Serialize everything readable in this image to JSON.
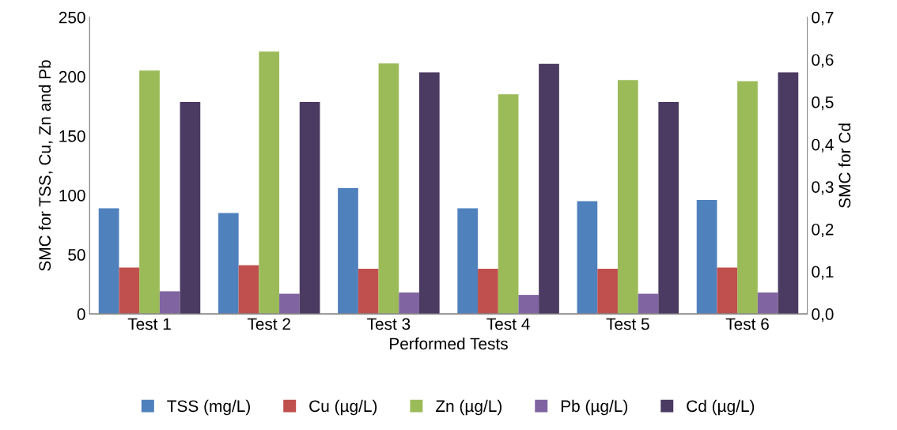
{
  "chart_data": {
    "type": "bar",
    "xlabel": "Performed Tests",
    "ylabel": "SMC for TSS, Cu, Zn and Pb",
    "y2label": "SMC for Cd",
    "categories": [
      "Test 1",
      "Test 2",
      "Test 3",
      "Test 4",
      "Test 5",
      "Test 6"
    ],
    "series": [
      {
        "name": "TSS (mg/L)",
        "color": "#4f81bd",
        "values": [
          89,
          85,
          106,
          89,
          95,
          96
        ]
      },
      {
        "name": "Cu (µg/L)",
        "color": "#c0504d",
        "values": [
          39,
          41,
          38,
          38,
          38,
          39
        ]
      },
      {
        "name": "Zn (µg/L)",
        "color": "#9bbb59",
        "values": [
          205,
          221,
          211,
          185,
          197,
          196
        ]
      },
      {
        "name": "Pb (µg/L)",
        "color": "#8064a2",
        "values": [
          19,
          17,
          18,
          16,
          17,
          18
        ]
      },
      {
        "name": "Cd (µg/L)",
        "color": "#4b3a61",
        "axis": "y2",
        "values": [
          0.5,
          0.5,
          0.57,
          0.59,
          0.5,
          0.57
        ]
      }
    ],
    "ylim": [
      0,
      250
    ],
    "yticks": [
      0,
      50,
      100,
      150,
      200,
      250
    ],
    "y2lim": [
      0,
      0.7
    ],
    "y2ticks": [
      {
        "value": 0,
        "label": "0,0"
      },
      {
        "value": 0.1,
        "label": "0,1"
      },
      {
        "value": 0.2,
        "label": "0,2"
      },
      {
        "value": 0.3,
        "label": "0,3"
      },
      {
        "value": 0.4,
        "label": "0,4"
      },
      {
        "value": 0.5,
        "label": "0,5"
      },
      {
        "value": 0.6,
        "label": "0,6"
      },
      {
        "value": 0.7,
        "label": "0,7"
      }
    ],
    "grid": false,
    "legend": "bottom"
  }
}
